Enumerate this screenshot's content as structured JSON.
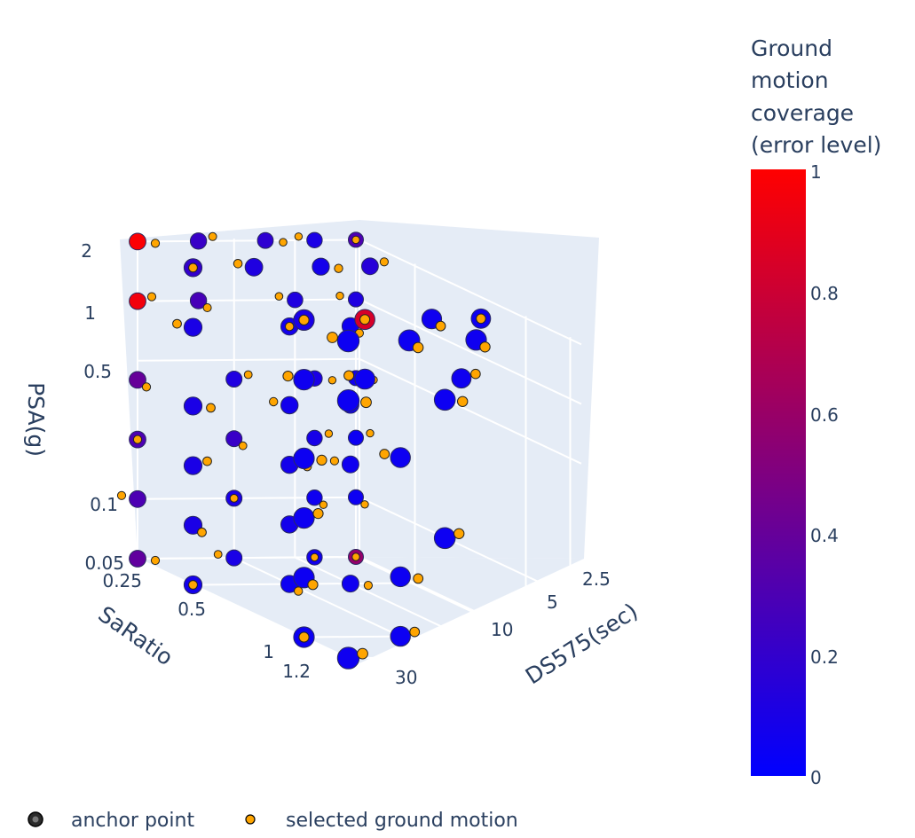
{
  "chart_data": {
    "type": "scatter3d",
    "axes": {
      "x": {
        "title": "SaRatio",
        "ticks": [
          "0.25",
          "0.5",
          "1",
          "1.2"
        ]
      },
      "y": {
        "title": "DS575(sec)",
        "ticks": [
          "2.5",
          "5",
          "10",
          "30"
        ]
      },
      "z": {
        "title": "PSA(g)",
        "scale": "log",
        "ticks": [
          "0.05",
          "0.1",
          "0.5",
          "1",
          "2"
        ]
      }
    },
    "colorbar": {
      "title_lines": [
        "Ground",
        "motion",
        "coverage",
        "(error level)"
      ],
      "range": [
        0,
        1
      ],
      "ticks": [
        "0",
        "0.2",
        "0.4",
        "0.6",
        "0.8",
        "1"
      ],
      "colors": [
        "#0000ff",
        "#ff0000"
      ]
    },
    "legend": {
      "placement": "bottom-left",
      "entries": [
        {
          "name": "anchor point",
          "marker_color": "#2b2b2b"
        },
        {
          "name": "selected ground motion",
          "marker_color": "#ffa500"
        }
      ]
    },
    "selected_color": "#ffa500",
    "anchor_grid": {
      "psa_levels": [
        2,
        1,
        0.4,
        0.2,
        0.1,
        0.05
      ],
      "saratio_levels": [
        0.25,
        0.5,
        1,
        1.2
      ],
      "ds575_levels": [
        2.5,
        5,
        10,
        30
      ]
    },
    "anchor_points": [
      {
        "s": 0.25,
        "d": 30,
        "p": 2,
        "e": 0.99
      },
      {
        "s": 0.25,
        "d": 15,
        "p": 2,
        "e": 0.22
      },
      {
        "s": 0.25,
        "d": 7,
        "p": 2,
        "e": 0.18
      },
      {
        "s": 0.25,
        "d": 4,
        "p": 2,
        "e": 0.1
      },
      {
        "s": 0.25,
        "d": 2.5,
        "p": 2,
        "e": 0.3
      },
      {
        "s": 0.5,
        "d": 30,
        "p": 2,
        "e": 0.2
      },
      {
        "s": 0.5,
        "d": 15,
        "p": 2,
        "e": 0.12
      },
      {
        "s": 0.5,
        "d": 7,
        "p": 2,
        "e": 0.08
      },
      {
        "s": 0.5,
        "d": 4,
        "p": 2,
        "e": 0.15
      },
      {
        "s": 1,
        "d": 30,
        "p": 2,
        "e": 0.1
      },
      {
        "s": 1,
        "d": 15,
        "p": 2,
        "e": 0.84
      },
      {
        "s": 1,
        "d": 7,
        "p": 2,
        "e": 0.06
      },
      {
        "s": 1,
        "d": 4,
        "p": 2,
        "e": 0.06
      },
      {
        "s": 1.2,
        "d": 30,
        "p": 2,
        "e": 0.05
      },
      {
        "s": 1.2,
        "d": 15,
        "p": 2,
        "e": 0.05
      },
      {
        "s": 1.2,
        "d": 7,
        "p": 2,
        "e": 0.06
      },
      {
        "s": 0.25,
        "d": 30,
        "p": 1,
        "e": 0.95
      },
      {
        "s": 0.25,
        "d": 15,
        "p": 1,
        "e": 0.28
      },
      {
        "s": 0.25,
        "d": 5,
        "p": 1,
        "e": 0.12
      },
      {
        "s": 0.25,
        "d": 2.5,
        "p": 1,
        "e": 0.12
      },
      {
        "s": 0.5,
        "d": 30,
        "p": 1,
        "e": 0.1
      },
      {
        "s": 0.5,
        "d": 10,
        "p": 1,
        "e": 0.08
      },
      {
        "s": 0.5,
        "d": 5,
        "p": 1,
        "e": 0.06
      },
      {
        "s": 1,
        "d": 30,
        "p": 1,
        "e": 0.06
      },
      {
        "s": 1,
        "d": 15,
        "p": 1,
        "e": 0.05
      },
      {
        "s": 1,
        "d": 5,
        "p": 1,
        "e": 0.06
      },
      {
        "s": 1.2,
        "d": 30,
        "p": 1,
        "e": 0.05
      },
      {
        "s": 1.2,
        "d": 10,
        "p": 1,
        "e": 0.05
      },
      {
        "s": 0.25,
        "d": 30,
        "p": 0.4,
        "e": 0.4
      },
      {
        "s": 0.25,
        "d": 10,
        "p": 0.4,
        "e": 0.12
      },
      {
        "s": 0.25,
        "d": 4,
        "p": 0.4,
        "e": 0.1
      },
      {
        "s": 0.25,
        "d": 2.5,
        "p": 0.4,
        "e": 0.07
      },
      {
        "s": 0.5,
        "d": 30,
        "p": 0.4,
        "e": 0.1
      },
      {
        "s": 0.5,
        "d": 10,
        "p": 0.4,
        "e": 0.07
      },
      {
        "s": 0.5,
        "d": 5,
        "p": 0.4,
        "e": 0.06
      },
      {
        "s": 1,
        "d": 30,
        "p": 0.4,
        "e": 0.05
      },
      {
        "s": 1,
        "d": 10,
        "p": 0.4,
        "e": 0.05
      },
      {
        "s": 0.25,
        "d": 30,
        "p": 0.2,
        "e": 0.3
      },
      {
        "s": 0.25,
        "d": 10,
        "p": 0.2,
        "e": 0.22
      },
      {
        "s": 0.25,
        "d": 4,
        "p": 0.2,
        "e": 0.09
      },
      {
        "s": 0.25,
        "d": 2.5,
        "p": 0.2,
        "e": 0.05
      },
      {
        "s": 0.5,
        "d": 30,
        "p": 0.2,
        "e": 0.1
      },
      {
        "s": 0.5,
        "d": 10,
        "p": 0.2,
        "e": 0.08
      },
      {
        "s": 0.5,
        "d": 5,
        "p": 0.2,
        "e": 0.06
      },
      {
        "s": 1,
        "d": 30,
        "p": 0.2,
        "e": 0.05
      },
      {
        "s": 1.2,
        "d": 10,
        "p": 0.2,
        "e": 0.05
      },
      {
        "s": 0.25,
        "d": 30,
        "p": 0.1,
        "e": 0.3
      },
      {
        "s": 0.25,
        "d": 10,
        "p": 0.1,
        "e": 0.1
      },
      {
        "s": 0.25,
        "d": 4,
        "p": 0.1,
        "e": 0.06
      },
      {
        "s": 0.25,
        "d": 2.5,
        "p": 0.1,
        "e": 0.05
      },
      {
        "s": 0.5,
        "d": 30,
        "p": 0.1,
        "e": 0.1
      },
      {
        "s": 0.5,
        "d": 10,
        "p": 0.1,
        "e": 0.08
      },
      {
        "s": 1,
        "d": 30,
        "p": 0.1,
        "e": 0.05
      },
      {
        "s": 1,
        "d": 10,
        "p": 0.1,
        "e": 0.05
      },
      {
        "s": 0.25,
        "d": 30,
        "p": 0.05,
        "e": 0.38
      },
      {
        "s": 0.25,
        "d": 10,
        "p": 0.05,
        "e": 0.1
      },
      {
        "s": 0.25,
        "d": 4,
        "p": 0.05,
        "e": 0.07
      },
      {
        "s": 0.25,
        "d": 2.5,
        "p": 0.05,
        "e": 0.58
      },
      {
        "s": 0.5,
        "d": 30,
        "p": 0.05,
        "e": 0.08
      },
      {
        "s": 0.5,
        "d": 10,
        "p": 0.05,
        "e": 0.05
      },
      {
        "s": 0.5,
        "d": 5,
        "p": 0.05,
        "e": 0.06
      },
      {
        "s": 1,
        "d": 30,
        "p": 0.05,
        "e": 0.05
      },
      {
        "s": 1,
        "d": 10,
        "p": 0.05,
        "e": 0.05
      },
      {
        "s": 1.2,
        "d": 30,
        "p": 0.05,
        "e": 0.06
      }
    ]
  }
}
